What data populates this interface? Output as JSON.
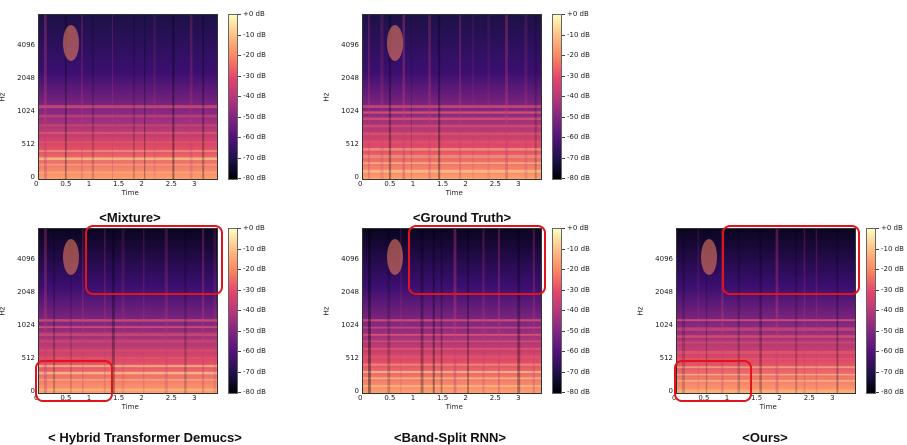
{
  "colors": {
    "highlight": "#e3131b"
  },
  "axes": {
    "y_ticks": [
      "4096",
      "2048",
      "1024",
      "512",
      "0"
    ],
    "x_ticks": [
      "0",
      "0.5",
      "1",
      "1.5",
      "2",
      "2.5",
      "3"
    ],
    "y_label": "Hz",
    "x_label": "Time"
  },
  "colorbar": {
    "ticks": [
      "+0 dB",
      "-10 dB",
      "-20 dB",
      "-30 dB",
      "-40 dB",
      "-50 dB",
      "-60 dB",
      "-70 dB",
      "-80 dB"
    ]
  },
  "panels": [
    {
      "caption": "<Mixture>"
    },
    {
      "caption": "<Ground Truth>"
    },
    {
      "caption": "< Hybrid Transformer Demucs>"
    },
    {
      "caption": "<Band-Split RNN>"
    },
    {
      "caption": "<Ours>"
    }
  ]
}
